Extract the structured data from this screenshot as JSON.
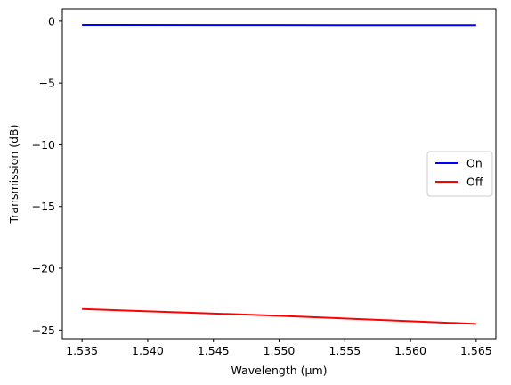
{
  "chart_data": {
    "type": "line",
    "xlabel": "Wavelength (µm)",
    "ylabel": "Transmission (dB)",
    "xlim": [
      1.5335,
      1.5665
    ],
    "ylim": [
      -25.7,
      1.0
    ],
    "x_ticks": [
      1.535,
      1.54,
      1.545,
      1.55,
      1.555,
      1.56,
      1.565
    ],
    "x_tick_labels": [
      "1.535",
      "1.540",
      "1.545",
      "1.550",
      "1.555",
      "1.560",
      "1.565"
    ],
    "y_ticks": [
      0,
      -5,
      -10,
      -15,
      -20,
      -25
    ],
    "y_tick_labels": [
      "0",
      "−5",
      "−10",
      "−15",
      "−20",
      "−25"
    ],
    "grid": false,
    "legend_position": "center-right",
    "series": [
      {
        "name": "On",
        "color": "#0000ff",
        "x": [
          1.535,
          1.55,
          1.565
        ],
        "y": [
          -0.3,
          -0.31,
          -0.32
        ]
      },
      {
        "name": "Off",
        "color": "#ff0000",
        "x": [
          1.535,
          1.55,
          1.565
        ],
        "y": [
          -23.3,
          -23.85,
          -24.5
        ]
      }
    ]
  }
}
